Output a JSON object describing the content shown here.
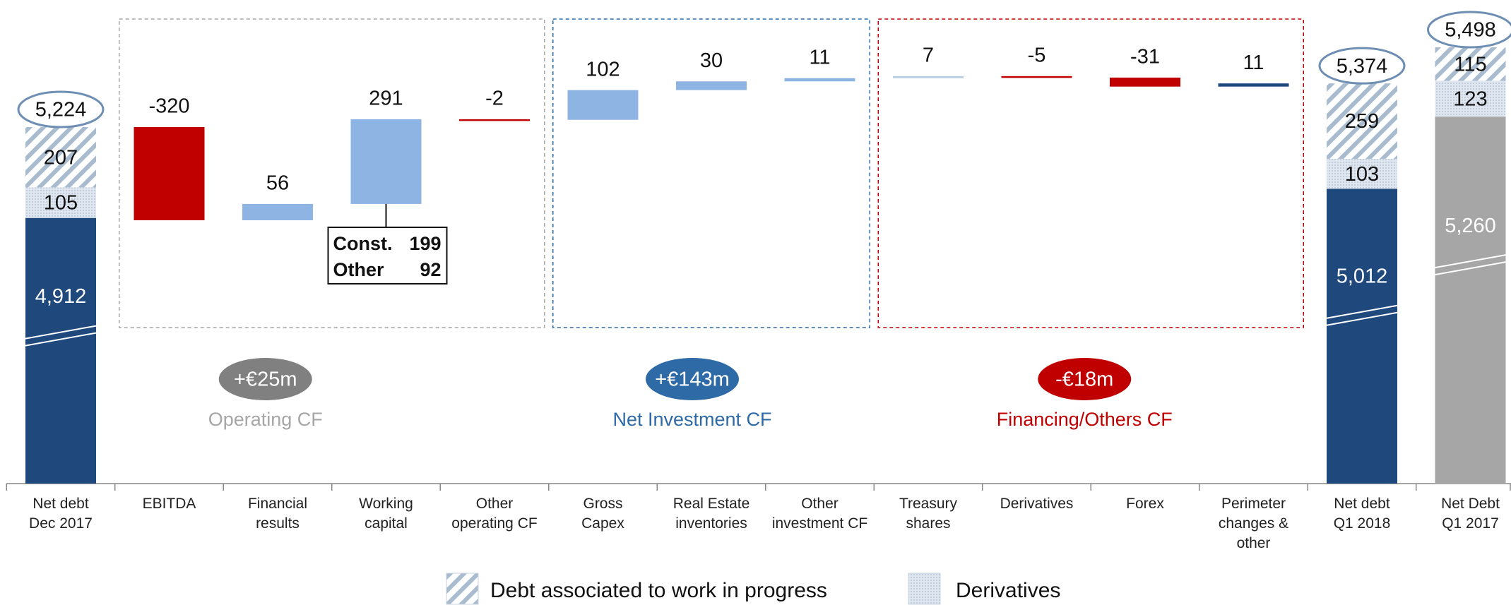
{
  "chart_data": {
    "type": "waterfall",
    "categories": [
      "Net debt\nDec 2017",
      "EBITDA",
      "Financial results",
      "Working\ncapital",
      "Other\noperating CF",
      "Gross\nCapex",
      "Real Estate\ninventories",
      "Other\ninvestment CF",
      "Treasury shares",
      "Derivatives",
      "Forex",
      "Perimeter\nchanges & other",
      "Net debt\nQ1 2018",
      "Net Debt\nQ1 2017"
    ],
    "values": [
      5224,
      -320,
      56,
      291,
      -2,
      102,
      30,
      11,
      7,
      -5,
      -31,
      11,
      5374,
      5498
    ],
    "value_labels": [
      "5,224",
      "-320",
      "56",
      "291",
      "-2",
      "102",
      "30",
      "11",
      "7",
      "-5",
      "-31",
      "11",
      "5,374",
      "5,498"
    ],
    "totals": [
      true,
      false,
      false,
      false,
      false,
      false,
      false,
      false,
      false,
      false,
      false,
      false,
      true,
      true
    ],
    "colors": [
      "#1f497d",
      "#c00000",
      "#8db4e2",
      "#8db4e2",
      "#c00000",
      "#8db4e2",
      "#8db4e2",
      "#8db4e2",
      "#b8cce4",
      "#c00000",
      "#c00000",
      "#1f497d",
      "#1f497d",
      "#a6a6a6"
    ],
    "series": [
      {
        "values": [
          4912,
          null,
          null,
          null,
          null,
          null,
          null,
          null,
          null,
          null,
          null,
          null,
          5012,
          5260
        ],
        "value_labels": [
          "4,912",
          null,
          null,
          null,
          null,
          null,
          null,
          null,
          null,
          null,
          null,
          null,
          "5,012",
          "5,260"
        ]
      },
      {
        "name": "Derivatives",
        "pattern": "dots",
        "values": [
          105,
          null,
          null,
          null,
          null,
          null,
          null,
          null,
          null,
          null,
          null,
          null,
          103,
          123
        ]
      },
      {
        "name": "Debt associated to work in progress",
        "pattern": "hatch",
        "values": [
          207,
          null,
          null,
          null,
          null,
          null,
          null,
          null,
          null,
          null,
          null,
          null,
          259,
          115
        ]
      }
    ],
    "groups": [
      {
        "name": "Operating CF",
        "total_label": "+€25m",
        "from": 1,
        "to": 4,
        "color": "#a6a6a6",
        "pill_color": "#808080"
      },
      {
        "name": "Net Investment CF",
        "total_label": "+€143m",
        "from": 5,
        "to": 7,
        "color": "#2e6aa6",
        "pill_color": "#2e6aa6"
      },
      {
        "name": "Financing/Others CF",
        "total_label": "-€18m",
        "from": 8,
        "to": 11,
        "color": "#c00000",
        "pill_color": "#c00000"
      }
    ],
    "annotation": {
      "index": 3,
      "rows": [
        [
          "Const.",
          199
        ],
        [
          "Other",
          92
        ]
      ]
    }
  }
}
